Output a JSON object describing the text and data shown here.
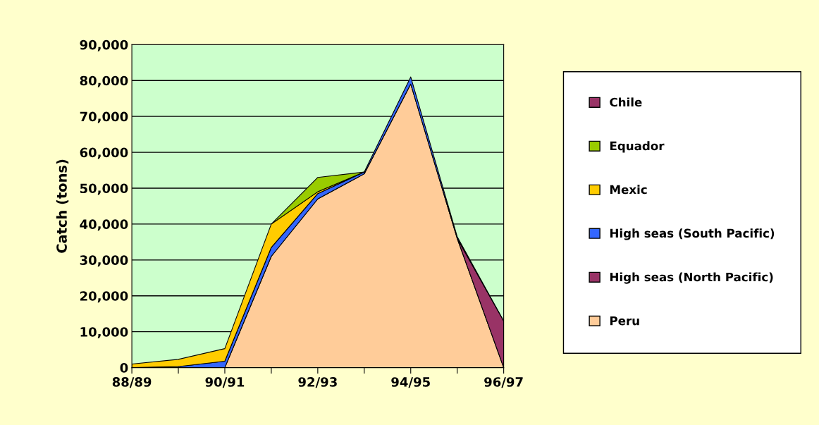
{
  "chart_data": {
    "type": "area",
    "stacked": true,
    "ylabel": "Catch (tons)",
    "categories": [
      "88/89",
      null,
      "90/91",
      null,
      "92/93",
      null,
      "94/95",
      null,
      "96/97"
    ],
    "series": [
      {
        "name": "Peru",
        "color": "#ffcc99",
        "values": [
          0,
          0,
          0,
          31000,
          47000,
          54000,
          79000,
          36000,
          0
        ]
      },
      {
        "name": "High seas (North Pacific)",
        "color": "#993366",
        "values": [
          null,
          null,
          null,
          null,
          null,
          null,
          null,
          0,
          13000
        ]
      },
      {
        "name": "High seas (South Pacific)",
        "color": "#3366ff",
        "values": [
          0,
          300,
          1800,
          2500,
          1500,
          500,
          2000,
          500,
          0
        ]
      },
      {
        "name": "Mexic",
        "color": "#ffcc00",
        "values": [
          1000,
          2000,
          3500,
          6500,
          500,
          0,
          null,
          null,
          null
        ]
      },
      {
        "name": "Equador",
        "color": "#99cc00",
        "values": [
          null,
          null,
          null,
          0,
          4000,
          0,
          null,
          null,
          null
        ]
      },
      {
        "name": "Chile",
        "color": "#993366",
        "values": [
          null,
          null,
          null,
          null,
          null,
          null,
          null,
          null,
          null
        ]
      }
    ],
    "ylim": [
      0,
      90000
    ],
    "yticks": [
      {
        "value": 0,
        "label": "0"
      },
      {
        "value": 10000,
        "label": "10,000"
      },
      {
        "value": 20000,
        "label": "20,000"
      },
      {
        "value": 30000,
        "label": "30,000"
      },
      {
        "value": 40000,
        "label": "40,000"
      },
      {
        "value": 50000,
        "label": "50,000"
      },
      {
        "value": 60000,
        "label": "60,000"
      },
      {
        "value": 70000,
        "label": "70,000"
      },
      {
        "value": 80000,
        "label": "80,000"
      },
      {
        "value": 90000,
        "label": "90,000"
      }
    ],
    "grid": "y",
    "legend": "right"
  }
}
